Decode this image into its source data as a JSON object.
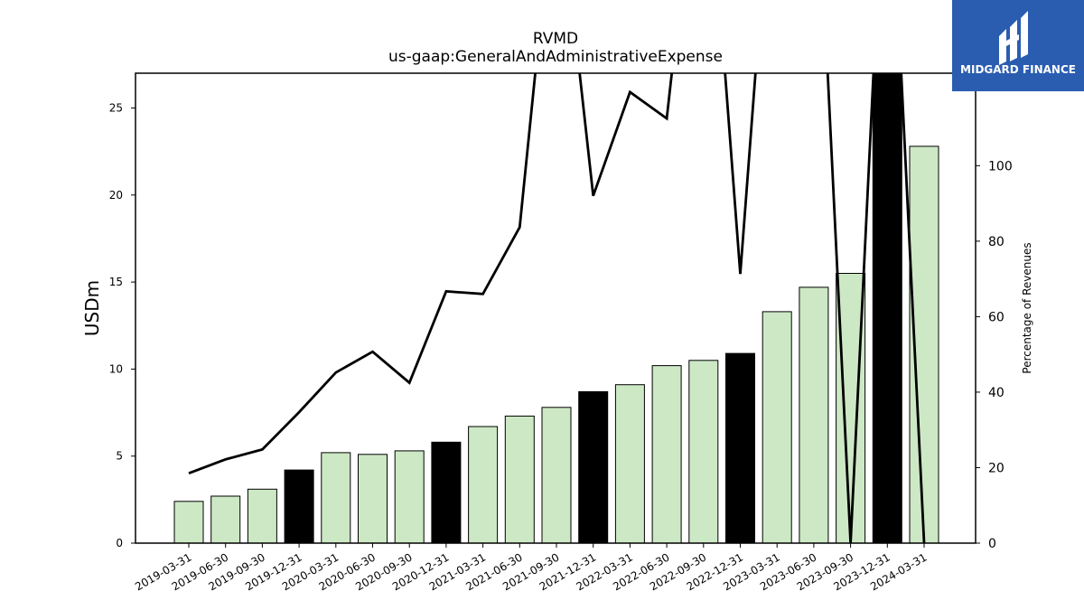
{
  "logo": {
    "text": "MIDGARD FINANCE",
    "background": "#2a5db0"
  },
  "chart_data": {
    "type": "bar",
    "title": "RVMD",
    "subtitle": "us-gaap:GeneralAndAdministrativeExpense",
    "ylabel": "USDm",
    "y2label": "Percentage of Revenues",
    "ylim": [
      0,
      27
    ],
    "y2lim": [
      0,
      124.5
    ],
    "yticks": [
      0,
      5,
      10,
      15,
      20,
      25
    ],
    "y2ticks": [
      0,
      20,
      40,
      60,
      80,
      100
    ],
    "categories": [
      "2019-03-31",
      "2019-06-30",
      "2019-09-30",
      "2019-12-31",
      "2020-03-31",
      "2020-06-30",
      "2020-09-30",
      "2020-12-31",
      "2021-03-31",
      "2021-06-30",
      "2021-09-30",
      "2021-12-31",
      "2022-03-31",
      "2022-06-30",
      "2022-09-30",
      "2022-12-31",
      "2023-03-31",
      "2023-06-30",
      "2023-09-30",
      "2023-12-31",
      "2024-03-31"
    ],
    "series": [
      {
        "type": "bar",
        "axis": "left",
        "values": [
          2.4,
          2.7,
          3.1,
          4.2,
          5.2,
          5.1,
          5.3,
          5.8,
          6.7,
          7.3,
          7.8,
          8.7,
          9.1,
          10.2,
          10.5,
          10.9,
          13.3,
          14.7,
          15.5,
          28.0,
          22.8
        ],
        "colors": [
          "#cde8c5",
          "#cde8c5",
          "#cde8c5",
          "#000000",
          "#cde8c5",
          "#cde8c5",
          "#cde8c5",
          "#000000",
          "#cde8c5",
          "#cde8c5",
          "#cde8c5",
          "#000000",
          "#cde8c5",
          "#cde8c5",
          "#cde8c5",
          "#000000",
          "#cde8c5",
          "#cde8c5",
          "#cde8c5",
          "#000000",
          "#cde8c5"
        ]
      },
      {
        "type": "line",
        "axis": "right",
        "color": "#000000",
        "values": [
          18.5,
          22.2,
          24.8,
          34.7,
          45.2,
          50.7,
          42.5,
          66.7,
          66.0,
          83.7,
          180.0,
          92.0,
          119.5,
          112.5,
          200.0,
          71.3,
          200.0,
          200.0,
          0.0,
          200.0,
          0.0
        ]
      }
    ]
  }
}
